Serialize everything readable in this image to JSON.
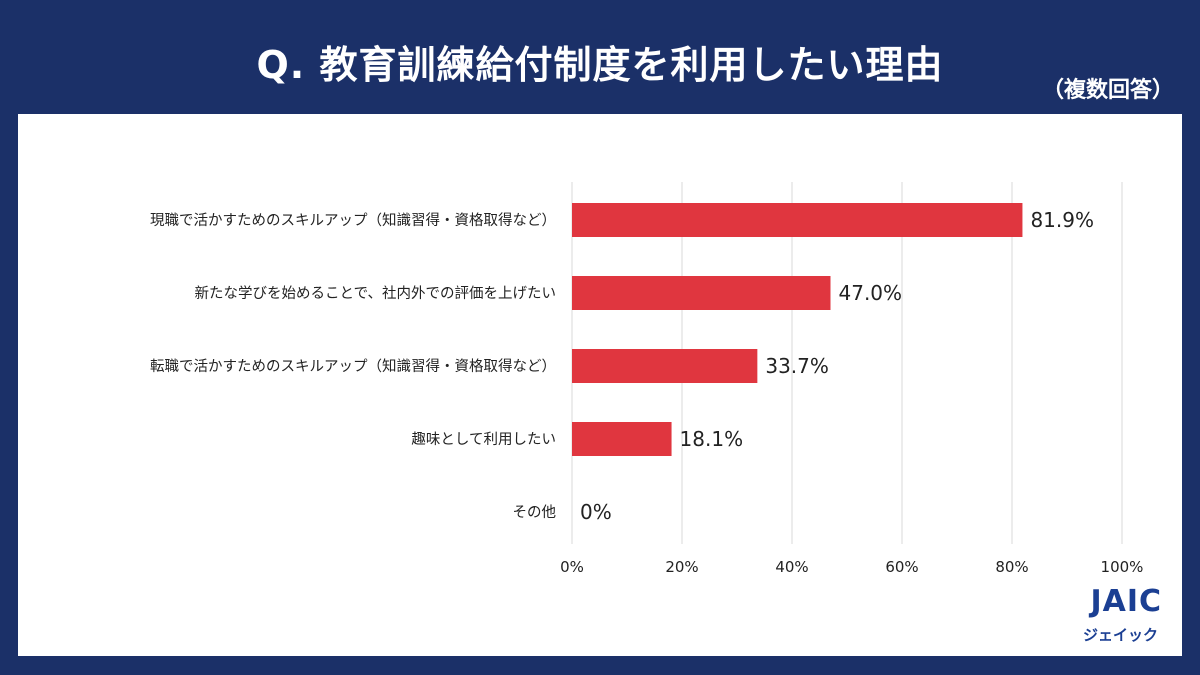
{
  "header": {
    "title": "Q. 教育訓練給付制度を利用したい理由",
    "note": "（複数回答）"
  },
  "logo": {
    "mark": "JAIC",
    "sub": "ジェイック"
  },
  "colors": {
    "background": "#1b3068",
    "bar": "#e0363f",
    "grid": "#d9d9d9",
    "text": "#222222"
  },
  "chart_data": {
    "type": "bar",
    "orientation": "horizontal",
    "categories": [
      "現職で活かすためのスキルアップ（知識習得・資格取得など）",
      "新たな学びを始めることで、社内外での評価を上げたい",
      "転職で活かすためのスキルアップ（知識習得・資格取得など）",
      "趣味として利用したい",
      "その他"
    ],
    "values": [
      81.9,
      47.0,
      33.7,
      18.1,
      0
    ],
    "data_labels": [
      "81.9%",
      "47.0%",
      "33.7%",
      "18.1%",
      "0%"
    ],
    "xlim": [
      0,
      100
    ],
    "x_ticks": [
      "0%",
      "20%",
      "40%",
      "60%",
      "80%",
      "100%"
    ],
    "grid": true,
    "legend": "none"
  }
}
